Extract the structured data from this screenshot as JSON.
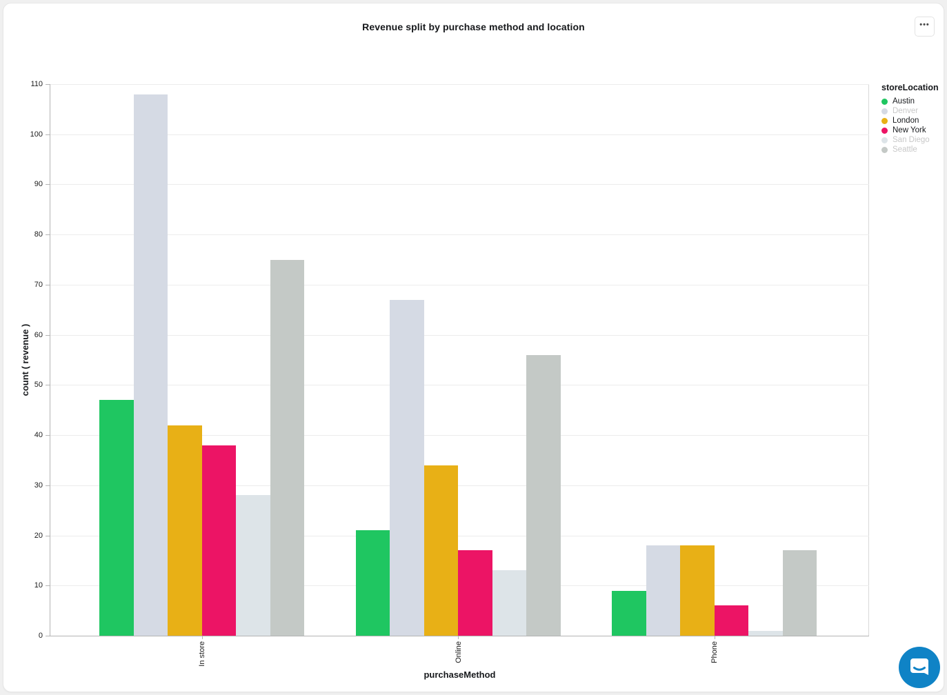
{
  "page": {
    "background": "#f0f0f0",
    "card_background": "#ffffff"
  },
  "header": {
    "menu_glyph": "•••"
  },
  "chart_data": {
    "type": "bar",
    "title": "Revenue split by purchase method and location",
    "xlabel": "purchaseMethod",
    "ylabel": "count ( revenue )",
    "categories": [
      "In store",
      "Online",
      "Phone"
    ],
    "series": [
      {
        "name": "Austin",
        "color": "#1fc661",
        "muted": false,
        "values": [
          47,
          21,
          9
        ]
      },
      {
        "name": "Denver",
        "color": "#d5dae4",
        "muted": true,
        "values": [
          108,
          67,
          18
        ]
      },
      {
        "name": "London",
        "color": "#e8b016",
        "muted": false,
        "values": [
          42,
          34,
          18
        ]
      },
      {
        "name": "New York",
        "color": "#ec1465",
        "muted": false,
        "values": [
          38,
          17,
          6
        ]
      },
      {
        "name": "San Diego",
        "color": "#dde4e8",
        "muted": true,
        "values": [
          28,
          13,
          1
        ]
      },
      {
        "name": "Seattle",
        "color": "#c4c9c6",
        "muted": true,
        "values": [
          75,
          56,
          17
        ]
      }
    ],
    "ylim": [
      0,
      110
    ],
    "ytick_step": 10,
    "grid": true,
    "legend_title": "storeLocation",
    "legend_position": "right",
    "legend_muted_text_color": "#c8c8c8"
  },
  "chat": {
    "bubble_color": "#0f83c6"
  }
}
